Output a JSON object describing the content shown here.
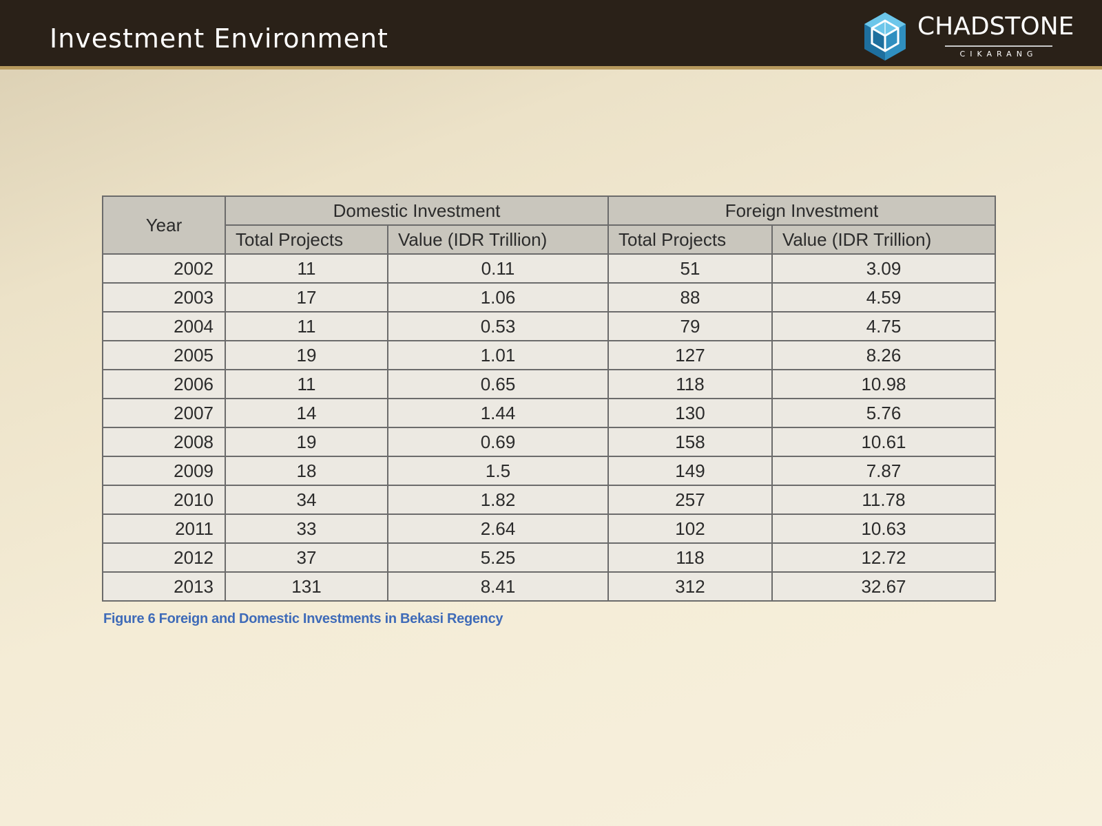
{
  "header": {
    "title": "Investment Environment",
    "logo_name": "CHADSTONE",
    "logo_sub": "CIKARANG",
    "logo_icon": "cube-icon",
    "colors": {
      "bar": "#2a2118",
      "accent": "#b79a5e",
      "logo_blue": "#2f8fc0"
    }
  },
  "table": {
    "year_header": "Year",
    "domestic_header": "Domestic Investment",
    "foreign_header": "Foreign Investment",
    "sub_headers": {
      "domestic_projects": "Total Projects",
      "domestic_value": "Value (IDR Trillion)",
      "foreign_projects": "Total Projects",
      "foreign_value": "Value (IDR Trillion)"
    },
    "rows": [
      {
        "year": "2002",
        "dom_projects": "11",
        "dom_value": "0.11",
        "for_projects": "51",
        "for_value": "3.09"
      },
      {
        "year": "2003",
        "dom_projects": "17",
        "dom_value": "1.06",
        "for_projects": "88",
        "for_value": "4.59"
      },
      {
        "year": "2004",
        "dom_projects": "11",
        "dom_value": "0.53",
        "for_projects": "79",
        "for_value": "4.75"
      },
      {
        "year": "2005",
        "dom_projects": "19",
        "dom_value": "1.01",
        "for_projects": "127",
        "for_value": "8.26"
      },
      {
        "year": "2006",
        "dom_projects": "11",
        "dom_value": "0.65",
        "for_projects": "118",
        "for_value": "10.98"
      },
      {
        "year": "2007",
        "dom_projects": "14",
        "dom_value": "1.44",
        "for_projects": "130",
        "for_value": "5.76"
      },
      {
        "year": "2008",
        "dom_projects": "19",
        "dom_value": "0.69",
        "for_projects": "158",
        "for_value": "10.61"
      },
      {
        "year": "2009",
        "dom_projects": "18",
        "dom_value": "1.5",
        "for_projects": "149",
        "for_value": "7.87"
      },
      {
        "year": "2010",
        "dom_projects": "34",
        "dom_value": "1.82",
        "for_projects": "257",
        "for_value": "11.78"
      },
      {
        "year": "2011",
        "dom_projects": "33",
        "dom_value": "2.64",
        "for_projects": "102",
        "for_value": "10.63"
      },
      {
        "year": "2012",
        "dom_projects": "37",
        "dom_value": "5.25",
        "for_projects": "118",
        "for_value": "12.72"
      },
      {
        "year": "2013",
        "dom_projects": "131",
        "dom_value": "8.41",
        "for_projects": "312",
        "for_value": "32.67"
      }
    ]
  },
  "caption": "Figure 6 Foreign and Domestic Investments in Bekasi Regency"
}
